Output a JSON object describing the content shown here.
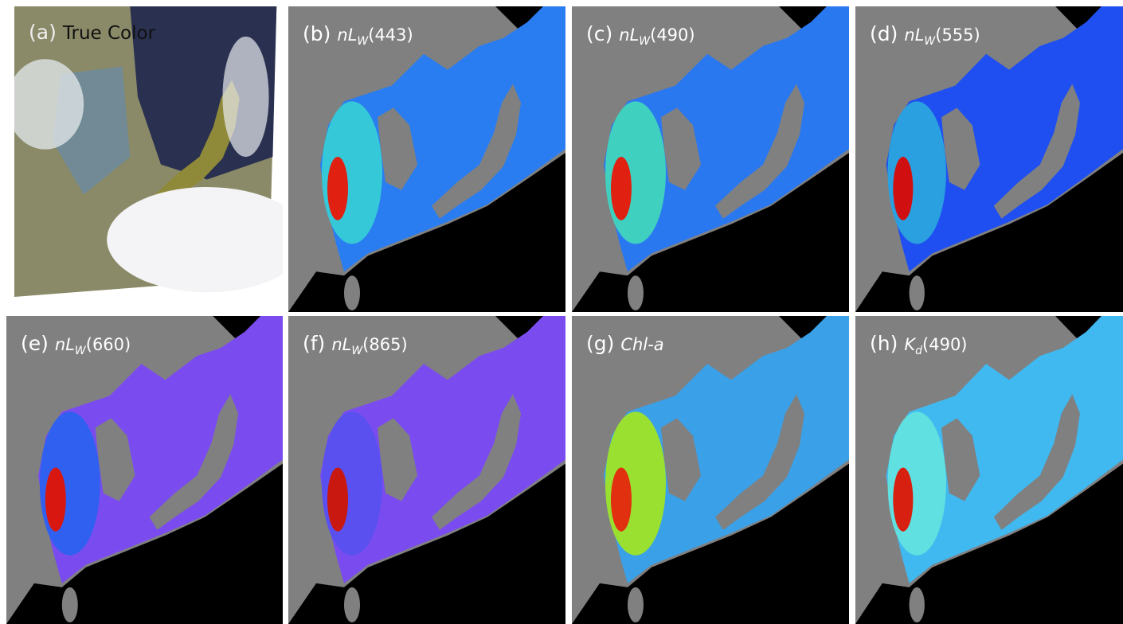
{
  "panels": [
    {
      "letter": "(a)",
      "label": [
        {
          "text": "True Color"
        }
      ]
    },
    {
      "letter": "(b)",
      "label": [
        {
          "text": "nL",
          "italic": true
        },
        {
          "text": "W",
          "italic": true,
          "sub": true
        },
        {
          "text": "(443)"
        }
      ]
    },
    {
      "letter": "(c)",
      "label": [
        {
          "text": "nL",
          "italic": true
        },
        {
          "text": "W",
          "italic": true,
          "sub": true
        },
        {
          "text": "(490)"
        }
      ]
    },
    {
      "letter": "(d)",
      "label": [
        {
          "text": "nL",
          "italic": true
        },
        {
          "text": "W",
          "italic": true,
          "sub": true
        },
        {
          "text": "(555)"
        }
      ]
    },
    {
      "letter": "(e)",
      "label": [
        {
          "text": "nL",
          "italic": true
        },
        {
          "text": "W",
          "italic": true,
          "sub": true
        },
        {
          "text": "(660)"
        }
      ]
    },
    {
      "letter": "(f)",
      "label": [
        {
          "text": "nL",
          "italic": true
        },
        {
          "text": "W",
          "italic": true,
          "sub": true
        },
        {
          "text": "(865)"
        }
      ]
    },
    {
      "letter": "(g)",
      "label": [
        {
          "text": "Chl-a",
          "italic": true
        }
      ]
    },
    {
      "letter": "(h)",
      "label": [
        {
          "text": "K",
          "italic": true
        },
        {
          "text": "d",
          "italic": true,
          "sub": true
        },
        {
          "text": "(490)"
        }
      ]
    }
  ]
}
